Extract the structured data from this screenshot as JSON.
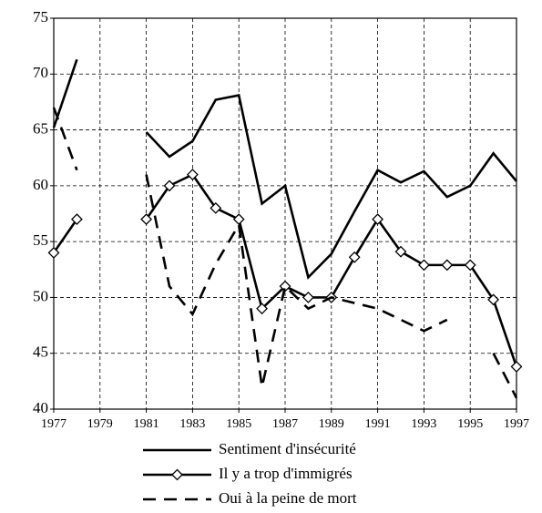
{
  "chart_data": {
    "type": "line",
    "x": [
      1977,
      1978,
      1979,
      1980,
      1981,
      1982,
      1983,
      1984,
      1985,
      1986,
      1987,
      1988,
      1989,
      1990,
      1991,
      1992,
      1993,
      1994,
      1995,
      1996,
      1997
    ],
    "series": [
      {
        "name": "Sentiment d'insécurité",
        "color": "#000000",
        "line_style": "solid",
        "marker": "none",
        "values": [
          65.2,
          71.3,
          null,
          null,
          64.8,
          62.6,
          64,
          67.7,
          68.1,
          58.4,
          60,
          51.8,
          53.9,
          57.7,
          61.4,
          60.3,
          61.3,
          59,
          60,
          62.9,
          60.4
        ]
      },
      {
        "name": "Il y a trop d'immigrés",
        "color": "#000000",
        "line_style": "solid",
        "marker": "diamond",
        "values": [
          54,
          57,
          null,
          null,
          57,
          60,
          61,
          58,
          57,
          49,
          51,
          50,
          50,
          53.6,
          57,
          54.1,
          52.9,
          52.9,
          52.9,
          49.8,
          43.8
        ]
      },
      {
        "name": "Oui à la peine de mort",
        "color": "#000000",
        "line_style": "dashed",
        "marker": "none",
        "values": [
          67,
          61.4,
          null,
          null,
          61,
          51,
          48.5,
          53,
          56.5,
          42,
          51,
          49,
          50,
          49.5,
          49,
          48,
          47,
          48,
          null,
          45,
          41
        ]
      }
    ],
    "xlim": [
      1977,
      1997
    ],
    "xticks": [
      1977,
      1979,
      1981,
      1983,
      1985,
      1987,
      1989,
      1991,
      1993,
      1995,
      1997
    ],
    "ylim": [
      40,
      75
    ],
    "yticks": [
      40,
      45,
      50,
      55,
      60,
      65,
      70,
      75
    ],
    "grid": true,
    "legend": "bottom"
  }
}
